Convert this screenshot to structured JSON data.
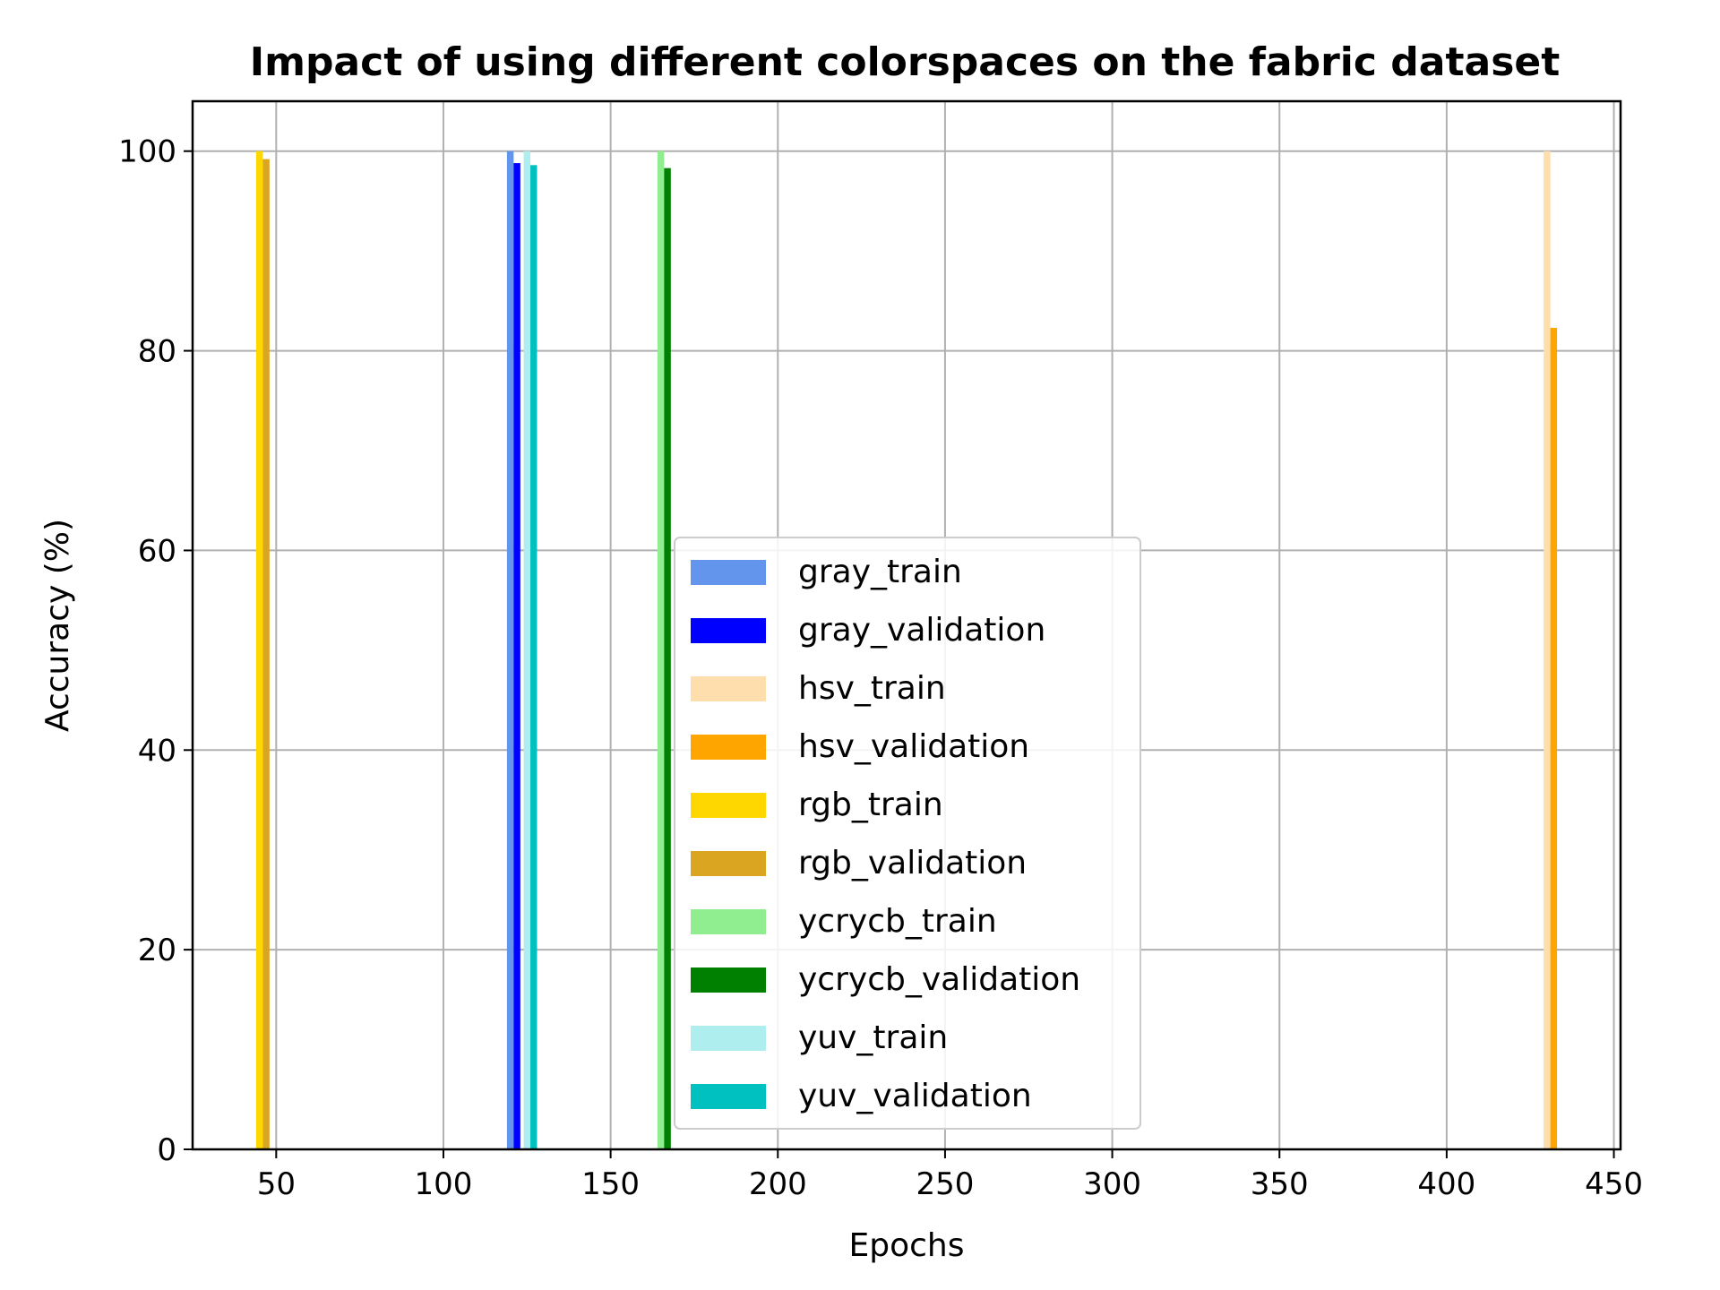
{
  "chart_data": {
    "type": "bar",
    "title": "Impact of using different colorspaces on the fabric dataset",
    "xlabel": "Epochs",
    "ylabel": "Accuracy (%)",
    "xlim": [
      25,
      452
    ],
    "ylim": [
      0,
      105
    ],
    "xticks": [
      50,
      100,
      150,
      200,
      250,
      300,
      350,
      400,
      450
    ],
    "yticks": [
      0,
      20,
      40,
      60,
      80,
      100
    ],
    "grid": true,
    "legend_position": "center",
    "bar_width": 2.0,
    "series": [
      {
        "name": "gray_train",
        "color": "#6495ED",
        "x": 120,
        "value": 100.0
      },
      {
        "name": "gray_validation",
        "color": "#0000FF",
        "x": 122,
        "value": 98.8
      },
      {
        "name": "hsv_train",
        "color": "#FFDEAD",
        "x": 430,
        "value": 100.0
      },
      {
        "name": "hsv_validation",
        "color": "#FFA500",
        "x": 432,
        "value": 82.3
      },
      {
        "name": "rgb_train",
        "color": "#FFD700",
        "x": 45,
        "value": 100.0
      },
      {
        "name": "rgb_validation",
        "color": "#DAA520",
        "x": 47,
        "value": 99.2
      },
      {
        "name": "ycrycb_train",
        "color": "#90EE90",
        "x": 165,
        "value": 100.0
      },
      {
        "name": "ycrycb_validation",
        "color": "#008000",
        "x": 167,
        "value": 98.3
      },
      {
        "name": "yuv_train",
        "color": "#AFEEEE",
        "x": 125,
        "value": 100.0
      },
      {
        "name": "yuv_validation",
        "color": "#00C0C0",
        "x": 127,
        "value": 98.6
      }
    ]
  }
}
